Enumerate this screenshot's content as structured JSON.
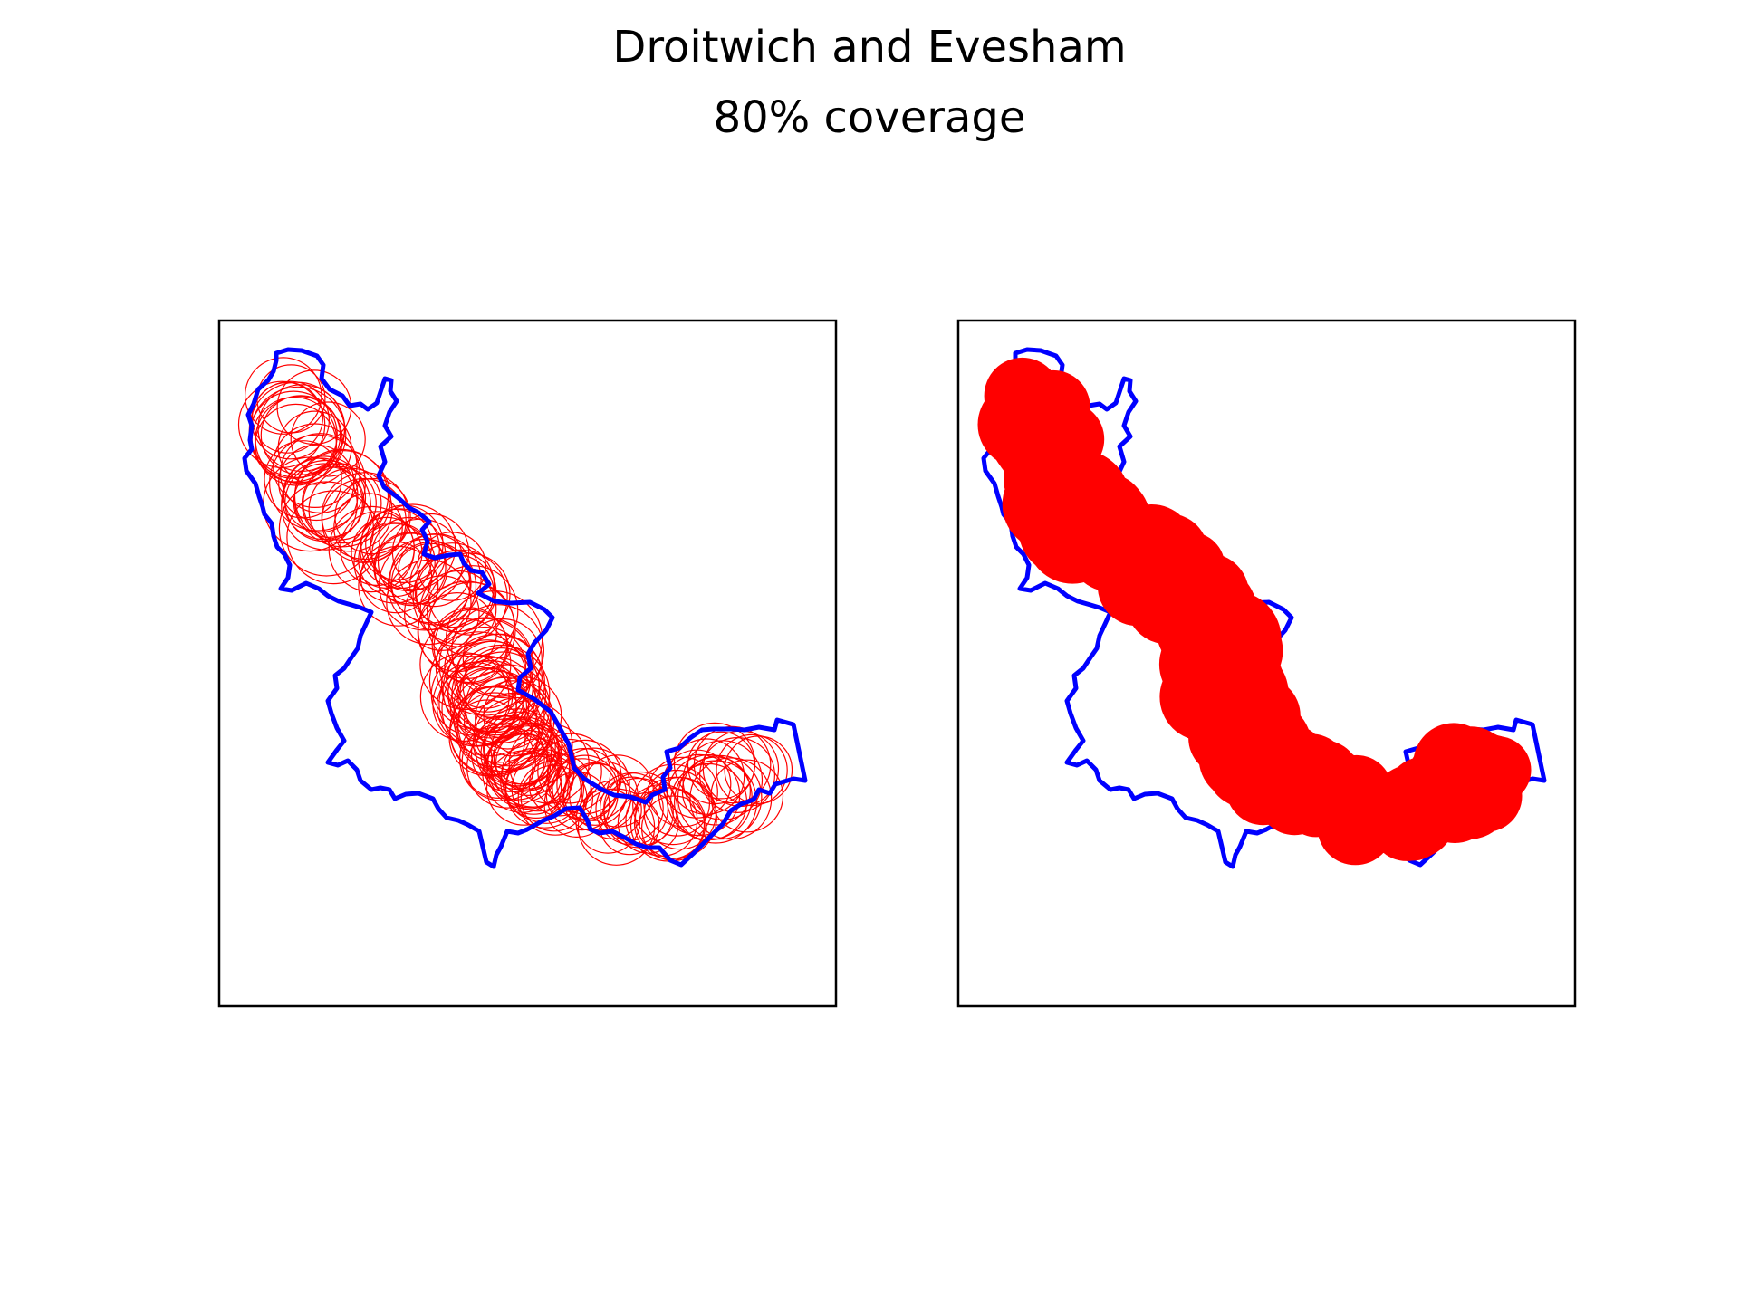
{
  "figure": {
    "title": "Droitwich and Evesham",
    "subtitle": "80% coverage"
  },
  "colors": {
    "boundary": "#0000ff",
    "coverage": "#ff0000",
    "frame": "#000000",
    "background": "#ffffff"
  },
  "panels": [
    {
      "name": "coverage-circles-outline",
      "style": "outline"
    },
    {
      "name": "coverage-circles-filled",
      "style": "filled"
    }
  ]
}
